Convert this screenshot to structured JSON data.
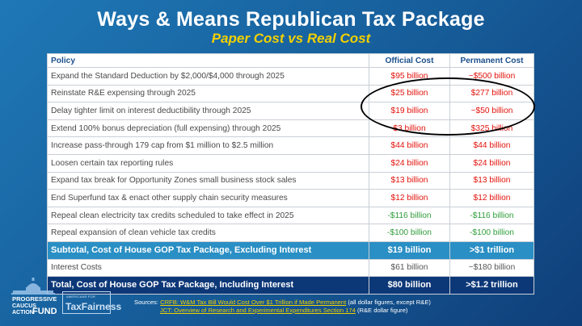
{
  "header": {
    "title": "Ways & Means Republican Tax Package",
    "subtitle": "Paper Cost vs Real Cost"
  },
  "table": {
    "columns": [
      "Policy",
      "Official Cost",
      "Permanent Cost"
    ],
    "rows": [
      {
        "policy": "Expand the Standard Deduction by $2,000/$4,000 through 2025",
        "official": "$95 billion",
        "permanent": "~$500 billion"
      },
      {
        "policy": "Reinstate R&E expensing through 2025",
        "official": "$25 billion",
        "permanent": "$277 billion"
      },
      {
        "policy": "Delay tighter limit on interest deductibility through 2025",
        "official": "$19 billion",
        "permanent": "~$50 billion"
      },
      {
        "policy": "Extend 100% bonus depreciation (full expensing) through 2025",
        "official": "$3 billion",
        "permanent": "$325 billion"
      },
      {
        "policy": "Increase pass-through 179 cap from $1 million to $2.5 million",
        "official": "$44 billion",
        "permanent": "$44 billion"
      },
      {
        "policy": "Loosen certain tax reporting rules",
        "official": "$24 billion",
        "permanent": "$24 billion"
      },
      {
        "policy": "Expand tax break for Opportunity Zones small business stock sales",
        "official": "$13 billion",
        "permanent": "$13 billion"
      },
      {
        "policy": "End Superfund tax & enact other supply chain security measures",
        "official": "$12 billion",
        "permanent": "$12 billion"
      },
      {
        "policy": "Repeal clean electricity tax credits scheduled to take effect in 2025",
        "official": "-$116 billion",
        "permanent": "-$116 billion"
      },
      {
        "policy": "Repeal expansion of clean vehicle tax credits",
        "official": "-$100 billion",
        "permanent": "-$100 billion"
      }
    ],
    "subtotal": {
      "policy": "Subtotal, Cost of House GOP Tax Package, Excluding Interest",
      "official": "$19 billion",
      "permanent": ">$1 trillion"
    },
    "interest": {
      "policy": "Interest Costs",
      "official": "$61 billion",
      "permanent": "~$180 billion"
    },
    "total": {
      "policy": "Total, Cost of House GOP Tax Package, Including Interest",
      "official": "$80 billion",
      "permanent": ">$1.2 trillion"
    }
  },
  "logos": {
    "pcaf_lines": [
      "PROGRESSIVE",
      "CAUCUS",
      "ACTION",
      "FUND"
    ],
    "atf_small": "AMERICANS FOR",
    "atf_big": "TaxFairness"
  },
  "sources": {
    "label": "Sources:",
    "line1_link": "CRFB: W&M Tax Bill Would Cost Over $1 Trillion if Made Permanent",
    "line1_note": "(all dollar figures, except R&E)",
    "line2_link": "JCT: Overview of Research and Experimental Expenditures Section 174",
    "line2_note": "(R&E dollar figure)"
  },
  "colors": {
    "red_value": "#e3120b",
    "green_value": "#2f9d3a",
    "subtotal_bg": "#2a8fc4",
    "total_bg": "#0d3878",
    "subtitle_yellow": "#f2d000"
  }
}
